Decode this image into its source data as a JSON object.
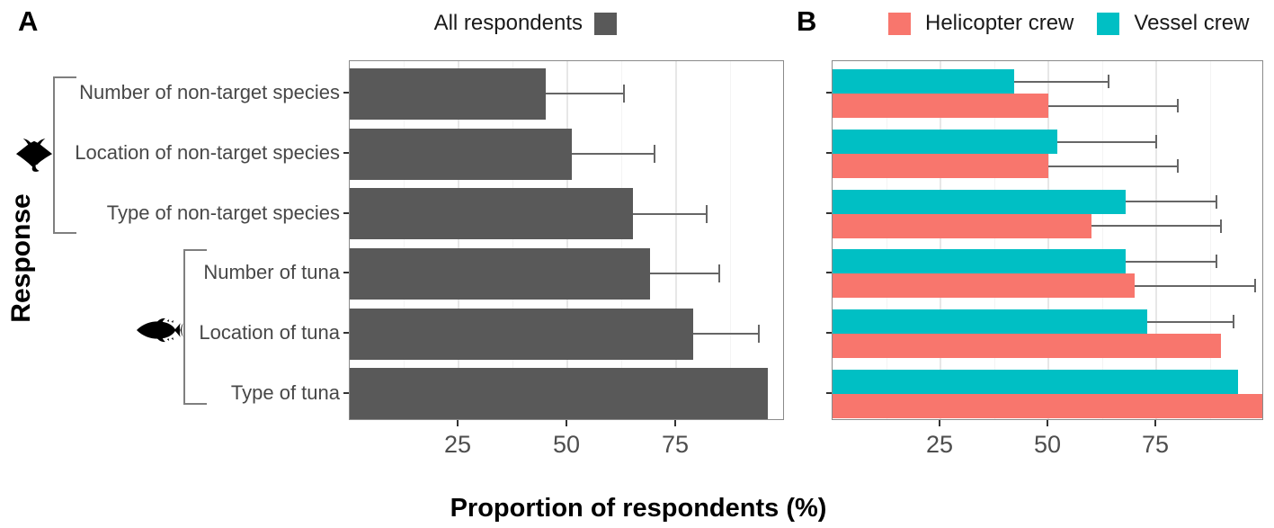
{
  "figure": {
    "panel_a_label": "A",
    "panel_b_label": "B"
  },
  "legend_a": {
    "label": "All respondents",
    "color": "#595959"
  },
  "legend_b": [
    {
      "label": "Helicopter crew",
      "color": "#F8766D"
    },
    {
      "label": "Vessel crew",
      "color": "#00BFC4"
    }
  ],
  "icons": {
    "non_target_group": "manta-ray-icon",
    "tuna_group": "tuna-icon"
  },
  "chart_data": {
    "type": "bar",
    "orientation": "horizontal",
    "title": "",
    "xlabel": "Proportion of respondents (%)",
    "ylabel": "Response",
    "xlim": [
      0,
      100
    ],
    "x_ticks": [
      25,
      50,
      75
    ],
    "grid": "light vertical major and minor gridlines on white, gray panel border",
    "categories": [
      "Number of non-target species",
      "Location of non-target species",
      "Type of non-target species",
      "Number of tuna",
      "Location of tuna",
      "Type of tuna"
    ],
    "category_groups": [
      {
        "label": "non-target species",
        "icon": "manta-ray",
        "category_indices": [
          0,
          1,
          2
        ]
      },
      {
        "label": "tuna",
        "icon": "tuna",
        "category_indices": [
          3,
          4,
          5
        ]
      }
    ],
    "panels": [
      {
        "label": "A",
        "legend": "All respondents",
        "series": [
          {
            "name": "All respondents",
            "color": "#595959",
            "values": [
              45,
              51,
              65,
              69,
              79,
              96
            ],
            "upper_ci": [
              63,
              70,
              82,
              85,
              94,
              null
            ]
          }
        ]
      },
      {
        "label": "B",
        "legend": "Helicopter crew / Vessel crew",
        "series_display_order_top_to_bottom": [
          "Vessel crew",
          "Helicopter crew"
        ],
        "series": [
          {
            "name": "Vessel crew",
            "color": "#00BFC4",
            "values": [
              42,
              52,
              68,
              68,
              73,
              94
            ],
            "upper_ci": [
              64,
              75,
              89,
              89,
              93,
              null
            ]
          },
          {
            "name": "Helicopter crew",
            "color": "#F8766D",
            "values": [
              50,
              50,
              60,
              70,
              90,
              100
            ],
            "upper_ci": [
              80,
              80,
              90,
              98,
              null,
              null
            ]
          }
        ]
      }
    ]
  }
}
